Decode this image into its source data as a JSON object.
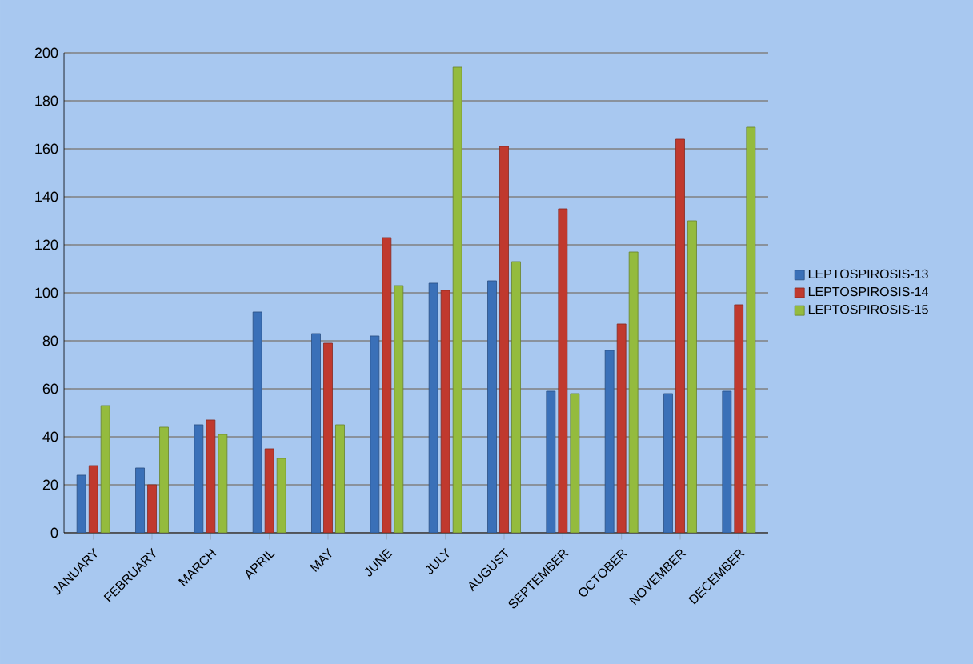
{
  "chart_data": {
    "type": "bar",
    "categories": [
      "JANUARY",
      "FEBRUARY",
      "MARCH",
      "APRIL",
      "MAY",
      "JUNE",
      "JULY",
      "AUGUST",
      "SEPTEMBER",
      "OCTOBER",
      "NOVEMBER",
      "DECEMBER"
    ],
    "series": [
      {
        "name": "LEPTOSPIROSIS-13",
        "color": "#3a70b8",
        "values": [
          24,
          27,
          45,
          92,
          83,
          82,
          104,
          105,
          59,
          76,
          58,
          59
        ]
      },
      {
        "name": "LEPTOSPIROSIS-14",
        "color": "#c0392e",
        "values": [
          28,
          20,
          47,
          35,
          79,
          123,
          101,
          161,
          135,
          87,
          164,
          95
        ]
      },
      {
        "name": "LEPTOSPIROSIS-15",
        "color": "#94bb3e",
        "values": [
          53,
          44,
          41,
          31,
          45,
          103,
          194,
          113,
          58,
          117,
          130,
          169
        ]
      }
    ],
    "ylim": [
      0,
      200
    ],
    "yticks": [
      0,
      20,
      40,
      60,
      80,
      100,
      120,
      140,
      160,
      180,
      200
    ],
    "grid": "y",
    "legend": "right"
  }
}
